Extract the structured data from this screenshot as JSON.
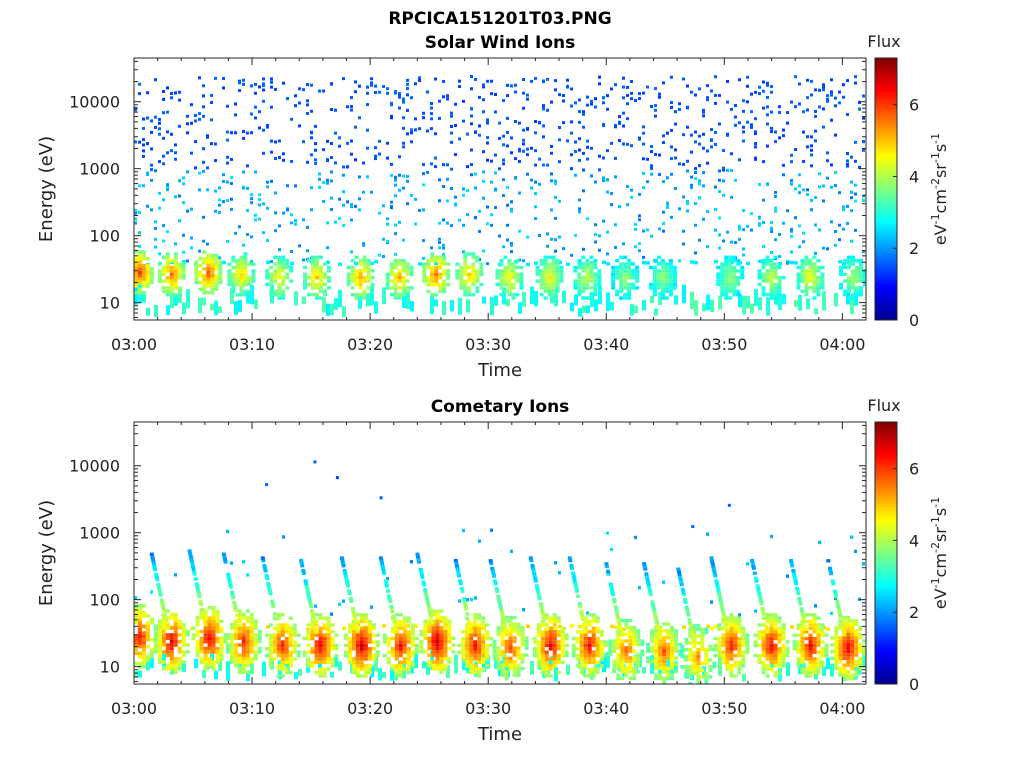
{
  "figure_title": "RPCICA151201T03.PNG",
  "colors": {
    "axis": "#262626",
    "colormap": [
      "#00008f",
      "#0000ff",
      "#0080ff",
      "#00ffff",
      "#80ff80",
      "#ffff00",
      "#ff8000",
      "#ff0000",
      "#800000"
    ]
  },
  "chart_data": [
    {
      "type": "heatmap",
      "title": "Solar Wind Ions",
      "xlabel": "Time",
      "ylabel": "Energy (eV)",
      "x_ticks": [
        "03:00",
        "03:10",
        "03:20",
        "03:30",
        "03:40",
        "03:50",
        "04:00"
      ],
      "x_tick_minutes": [
        0,
        10,
        20,
        30,
        40,
        50,
        60
      ],
      "xlim_minutes": [
        0,
        62
      ],
      "y_scale": "log",
      "y_ticks": [
        "10",
        "100",
        "1000",
        "10000"
      ],
      "y_tick_values": [
        10,
        100,
        1000,
        10000
      ],
      "ylim": [
        5.5,
        45000
      ],
      "colorbar": {
        "label": "Flux",
        "units": "eV-1cm-2sr-1s-1",
        "ticks": [
          "0",
          "2",
          "4",
          "6"
        ],
        "tick_values": [
          0,
          2,
          4,
          6
        ],
        "range": [
          0,
          7.3
        ]
      },
      "grid": false,
      "clusters": [
        {
          "t": 0.5,
          "e": 30,
          "flux": 6.0
        },
        {
          "t": 3.2,
          "e": 28,
          "flux": 5.6
        },
        {
          "t": 6.3,
          "e": 30,
          "flux": 5.8
        },
        {
          "t": 9.1,
          "e": 28,
          "flux": 4.8
        },
        {
          "t": 12.3,
          "e": 25,
          "flux": 4.6
        },
        {
          "t": 15.5,
          "e": 25,
          "flux": 4.9
        },
        {
          "t": 19.2,
          "e": 25,
          "flux": 5.3
        },
        {
          "t": 22.5,
          "e": 25,
          "flux": 5.1
        },
        {
          "t": 25.6,
          "e": 28,
          "flux": 5.6
        },
        {
          "t": 28.4,
          "e": 28,
          "flux": 5.0
        },
        {
          "t": 31.8,
          "e": 25,
          "flux": 4.6
        },
        {
          "t": 35.2,
          "e": 25,
          "flux": 4.6
        },
        {
          "t": 38.4,
          "e": 25,
          "flux": 4.2
        },
        {
          "t": 41.6,
          "e": 25,
          "flux": 3.8
        },
        {
          "t": 44.8,
          "e": 25,
          "flux": 3.8
        },
        {
          "t": 50.5,
          "e": 25,
          "flux": 3.9
        },
        {
          "t": 54.0,
          "e": 25,
          "flux": 4.2
        },
        {
          "t": 57.3,
          "e": 25,
          "flux": 4.5
        },
        {
          "t": 60.9,
          "e": 25,
          "flux": 4.0
        }
      ]
    },
    {
      "type": "heatmap",
      "title": "Cometary Ions",
      "xlabel": "Time",
      "ylabel": "Energy (eV)",
      "x_ticks": [
        "03:00",
        "03:10",
        "03:20",
        "03:30",
        "03:40",
        "03:50",
        "04:00"
      ],
      "x_tick_minutes": [
        0,
        10,
        20,
        30,
        40,
        50,
        60
      ],
      "xlim_minutes": [
        0,
        62
      ],
      "y_scale": "log",
      "y_ticks": [
        "10",
        "100",
        "1000",
        "10000"
      ],
      "y_tick_values": [
        10,
        100,
        1000,
        10000
      ],
      "ylim": [
        5.5,
        45000
      ],
      "colorbar": {
        "label": "Flux",
        "units": "eV-1cm-2sr-1s-1",
        "ticks": [
          "0",
          "2",
          "4",
          "6"
        ],
        "tick_values": [
          0,
          2,
          4,
          6
        ],
        "range": [
          0,
          7.3
        ]
      },
      "grid": false,
      "clusters": [
        {
          "t": 0.5,
          "e": 30,
          "flux": 6.4
        },
        {
          "t": 3.2,
          "e": 25,
          "flux": 6.6
        },
        {
          "t": 6.4,
          "e": 28,
          "flux": 6.6
        },
        {
          "t": 9.3,
          "e": 25,
          "flux": 6.2
        },
        {
          "t": 12.6,
          "e": 22,
          "flux": 6.2
        },
        {
          "t": 15.8,
          "e": 22,
          "flux": 6.6
        },
        {
          "t": 19.3,
          "e": 22,
          "flux": 6.8
        },
        {
          "t": 22.6,
          "e": 22,
          "flux": 6.4
        },
        {
          "t": 25.7,
          "e": 25,
          "flux": 6.8
        },
        {
          "t": 28.9,
          "e": 22,
          "flux": 6.4
        },
        {
          "t": 31.9,
          "e": 20,
          "flux": 6.0
        },
        {
          "t": 35.3,
          "e": 22,
          "flux": 6.6
        },
        {
          "t": 38.6,
          "e": 22,
          "flux": 6.4
        },
        {
          "t": 41.7,
          "e": 18,
          "flux": 5.8
        },
        {
          "t": 44.9,
          "e": 18,
          "flux": 5.8
        },
        {
          "t": 47.8,
          "e": 15,
          "flux": 5.4
        },
        {
          "t": 50.6,
          "e": 22,
          "flux": 6.2
        },
        {
          "t": 54.0,
          "e": 22,
          "flux": 6.4
        },
        {
          "t": 57.3,
          "e": 22,
          "flux": 6.4
        },
        {
          "t": 60.5,
          "e": 20,
          "flux": 6.6
        }
      ],
      "isolated_points": [
        {
          "t": 15.2,
          "e": 12000,
          "flux": 1.6
        },
        {
          "t": 17.1,
          "e": 7000,
          "flux": 1.4
        },
        {
          "t": 11.1,
          "e": 5500,
          "flux": 1.6
        },
        {
          "t": 20.8,
          "e": 3500,
          "flux": 1.6
        },
        {
          "t": 47.2,
          "e": 1300,
          "flux": 1.6
        },
        {
          "t": 50.3,
          "e": 2700,
          "flux": 1.6
        }
      ]
    }
  ]
}
